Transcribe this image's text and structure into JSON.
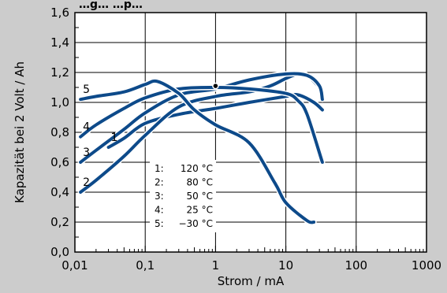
{
  "chart_data": {
    "type": "line",
    "title_fragment": "…g… …p…",
    "xlabel": "Strom / mA",
    "ylabel": "Kapazität bei 2 Volt / Ah",
    "xscale": "log",
    "xlim": [
      0.01,
      1000
    ],
    "ylim": [
      0,
      1.6
    ],
    "grid": true,
    "x_tick_labels": [
      "0,01",
      "0,1",
      "1",
      "10",
      "100",
      "1000"
    ],
    "y_tick_labels": [
      "0,0",
      "0,2",
      "0,4",
      "0,6",
      "0,8",
      "1,0",
      "1,2",
      "1,4",
      "1,6"
    ],
    "y_ticks": [
      0,
      0.2,
      0.4,
      0.6,
      0.8,
      1.0,
      1.2,
      1.4,
      1.6
    ],
    "series": [
      {
        "name": "1",
        "label": "1",
        "color": "#0d4a8a",
        "x": [
          0.03,
          0.05,
          0.1,
          0.3,
          1,
          3,
          10,
          15,
          25,
          33
        ],
        "y": [
          0.7,
          0.76,
          0.86,
          0.92,
          0.96,
          1.0,
          1.04,
          1.05,
          1.0,
          0.95
        ]
      },
      {
        "name": "2",
        "label": "2",
        "color": "#0d4a8a",
        "x": [
          0.012,
          0.02,
          0.05,
          0.1,
          0.3,
          1,
          3,
          6,
          10,
          15,
          20,
          30,
          33
        ],
        "y": [
          0.4,
          0.48,
          0.64,
          0.78,
          0.97,
          1.04,
          1.07,
          1.11,
          1.16,
          1.19,
          1.18,
          1.1,
          1.06
        ]
      },
      {
        "name": "3",
        "label": "3",
        "color": "#0d4a8a",
        "x": [
          0.012,
          0.02,
          0.05,
          0.1,
          0.3,
          1,
          3,
          10,
          20,
          30,
          33
        ],
        "y": [
          0.6,
          0.68,
          0.82,
          0.93,
          1.05,
          1.09,
          1.15,
          1.19,
          1.18,
          1.11,
          1.02
        ]
      },
      {
        "name": "4",
        "label": "4",
        "color": "#0d4a8a",
        "x": [
          0.012,
          0.02,
          0.05,
          0.1,
          0.3,
          1,
          3,
          10,
          15,
          20,
          33
        ],
        "y": [
          0.77,
          0.85,
          0.96,
          1.03,
          1.09,
          1.1,
          1.09,
          1.06,
          1.01,
          0.92,
          0.6
        ]
      },
      {
        "name": "5",
        "label": "5",
        "color": "#0d4a8a",
        "x": [
          0.012,
          0.02,
          0.05,
          0.1,
          0.15,
          0.3,
          0.5,
          1,
          3,
          7,
          10,
          20,
          25
        ],
        "y": [
          1.02,
          1.04,
          1.07,
          1.12,
          1.14,
          1.06,
          0.95,
          0.85,
          0.73,
          0.46,
          0.33,
          0.21,
          0.2
        ]
      }
    ],
    "marker": {
      "x": 1,
      "y": 1.11
    },
    "legend": {
      "placement": "lower-center",
      "entries": [
        {
          "key": "1:",
          "value": "120 °C"
        },
        {
          "key": "2:",
          "value": "80 °C"
        },
        {
          "key": "3:",
          "value": "50 °C"
        },
        {
          "key": "4:",
          "value": "25 °C"
        },
        {
          "key": "5:",
          "value": "−30 °C"
        }
      ]
    },
    "colors": {
      "background": "#cccccc",
      "plot_area": "#ffffff",
      "curve": "#0d4a8a",
      "grid": "#000000"
    }
  }
}
